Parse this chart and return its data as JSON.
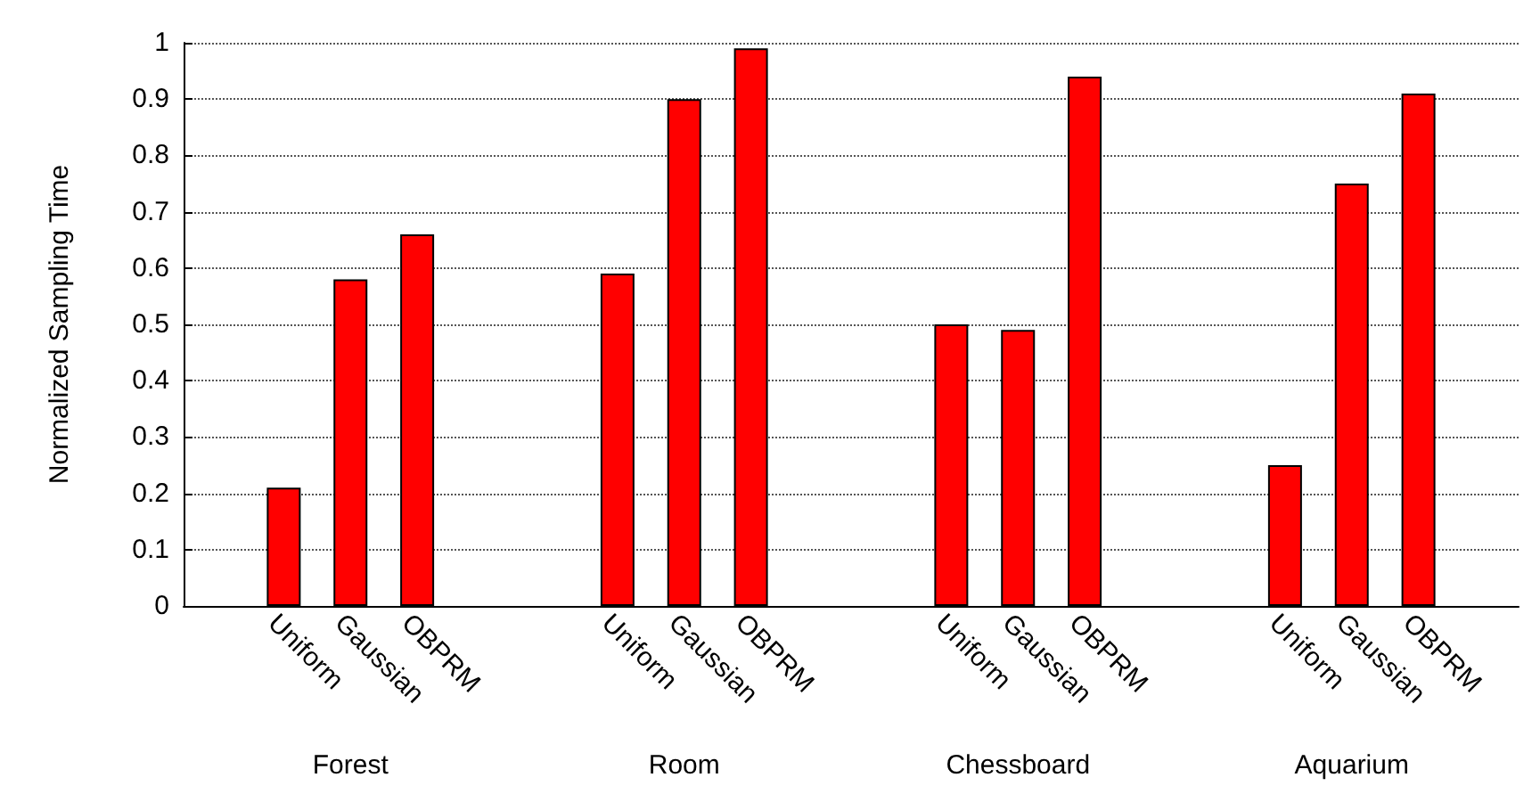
{
  "chart_data": {
    "type": "bar",
    "ylabel": "Normalized Sampling Time",
    "categories": [
      "Forest",
      "Room",
      "Chessboard",
      "Aquarium"
    ],
    "series": [
      {
        "name": "Uniform",
        "color": "#ff0000",
        "values": [
          0.21,
          0.59,
          0.5,
          0.25
        ]
      },
      {
        "name": "Gaussian",
        "color": "#ff0000",
        "values": [
          0.58,
          0.9,
          0.49,
          0.75
        ]
      },
      {
        "name": "OBPRM",
        "color": "#ff0000",
        "values": [
          0.66,
          0.99,
          0.94,
          0.91
        ]
      }
    ],
    "ylim": [
      0,
      1
    ],
    "yticks": [
      0,
      0.1,
      0.2,
      0.3,
      0.4,
      0.5,
      0.6,
      0.7,
      0.8,
      0.9,
      1
    ],
    "grid": "y"
  }
}
